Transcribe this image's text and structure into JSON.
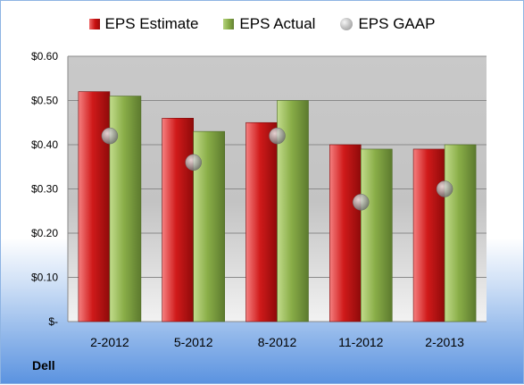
{
  "legend": {
    "estimate": "EPS Estimate",
    "actual": "EPS Actual",
    "gaap": "EPS GAAP"
  },
  "company": "Dell",
  "colors": {
    "estimate": "#c0111b",
    "actual": "#7f9f3e",
    "gaap": "#a0a0a0"
  },
  "chart_data": {
    "type": "bar",
    "title": "",
    "xlabel": "",
    "ylabel": "",
    "categories": [
      "2-2012",
      "5-2012",
      "8-2012",
      "11-2012",
      "2-2013"
    ],
    "series": [
      {
        "name": "EPS Estimate",
        "type": "bar",
        "values": [
          0.52,
          0.46,
          0.45,
          0.4,
          0.39
        ]
      },
      {
        "name": "EPS Actual",
        "type": "bar",
        "values": [
          0.51,
          0.43,
          0.5,
          0.39,
          0.4
        ]
      },
      {
        "name": "EPS GAAP",
        "type": "scatter",
        "values": [
          0.42,
          0.36,
          0.42,
          0.27,
          0.3
        ]
      }
    ],
    "ylim": [
      0,
      0.6
    ],
    "yticks": [
      {
        "value": 0.0,
        "label": "$-"
      },
      {
        "value": 0.1,
        "label": "$0.10"
      },
      {
        "value": 0.2,
        "label": "$0.20"
      },
      {
        "value": 0.3,
        "label": "$0.30"
      },
      {
        "value": 0.4,
        "label": "$0.40"
      },
      {
        "value": 0.5,
        "label": "$0.50"
      },
      {
        "value": 0.6,
        "label": "$0.60"
      }
    ],
    "grid": true,
    "legend_position": "top"
  }
}
